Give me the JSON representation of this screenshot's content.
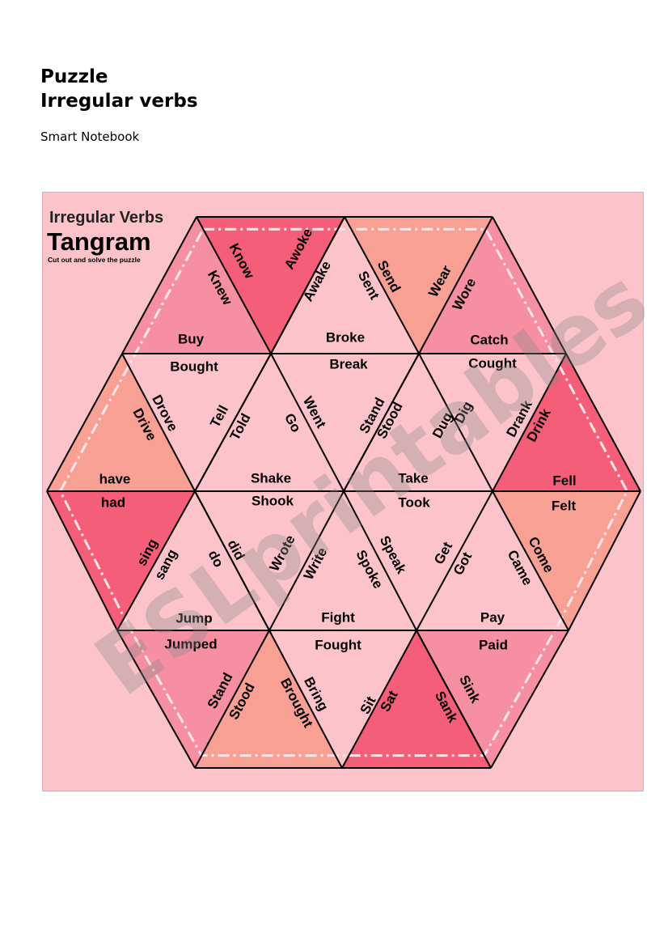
{
  "document": {
    "title_line1": "Puzzle",
    "title_line2": "Irregular verbs",
    "subtitle": "Smart Notebook"
  },
  "puzzle": {
    "heading": "Irregular Verbs",
    "title": "Tangram",
    "instruction": "Cut out and solve the puzzle",
    "watermark": "ESLprintables.com",
    "colors": {
      "background": "#fcc3cb",
      "light": "#fcc3cb",
      "medium": "#f68fa1",
      "dark": "#f45e79",
      "salmon": "#f9a095",
      "lines": "#000000"
    },
    "words": [
      "Know",
      "Knew",
      "Awoke",
      "Awake",
      "Buy",
      "Broke",
      "Send",
      "Sent",
      "Wear",
      "Wore",
      "Catch",
      "Bought",
      "Break",
      "Cought",
      "Drove",
      "Drive",
      "Tell",
      "Told",
      "Went",
      "Go",
      "Stand",
      "Stood",
      "Dig",
      "Dug",
      "Drank",
      "Drink",
      "have",
      "Shake",
      "Take",
      "Fell",
      "had",
      "Shook",
      "Took",
      "Felt",
      "sing",
      "sang",
      "did",
      "do",
      "Wrote",
      "Write",
      "Speak",
      "Spoke",
      "Get",
      "Got",
      "Come",
      "Came",
      "Jump",
      "Fight",
      "Pay",
      "Jumped",
      "Fought",
      "Paid",
      "Stand",
      "Stood",
      "Bring",
      "Brought",
      "Sit",
      "Sat",
      "Sink",
      "Sank"
    ]
  }
}
